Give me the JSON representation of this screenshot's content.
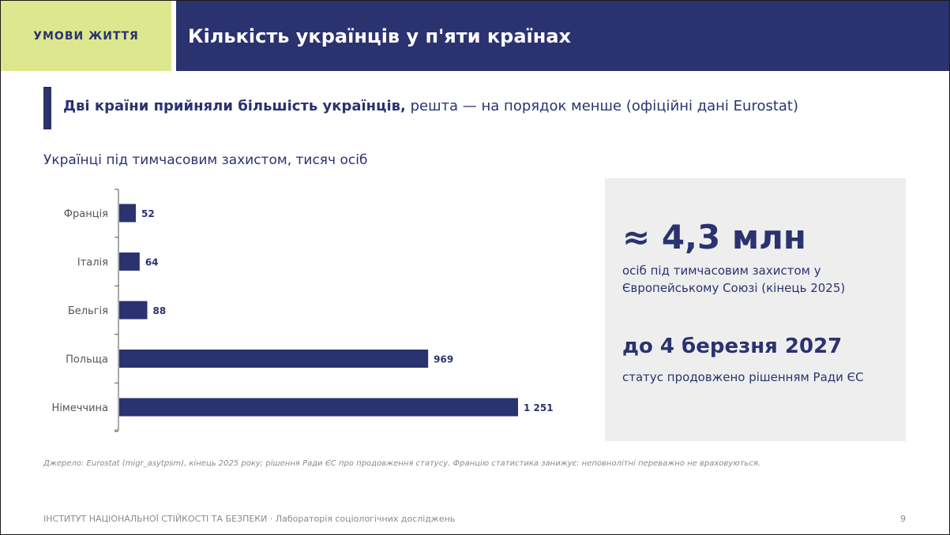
{
  "header": {
    "tag": "УМОВИ ЖИТТЯ",
    "title": "Кількість українців у п'яти країнах"
  },
  "subtitle": {
    "bold": "Дві країни прийняли більшість українців,",
    "rest": " решта — на порядок менше (офіційні дані Eurostat)"
  },
  "colors": {
    "accent": "#2b3270",
    "tag_bg": "#dde88e",
    "panel_bg": "#eeeeee"
  },
  "chart_data": {
    "type": "bar",
    "orientation": "horizontal",
    "title": "Українці під тимчасовим захистом, тисяч осіб",
    "categories": [
      "Франція",
      "Італія",
      "Бельгія",
      "Польща",
      "Німеччина"
    ],
    "values": [
      52,
      64,
      88,
      969,
      1251
    ],
    "value_labels": [
      "52",
      "64",
      "88",
      "969",
      "1 251"
    ],
    "xlim": [
      0,
      1251
    ],
    "grid": false,
    "legend": "none",
    "bar_color": "#2b3270"
  },
  "stats": {
    "big": "≈ 4,3 млн",
    "big_desc": "осіб під тимчасовим захистом у Європейському Союзі (кінець 2025)",
    "date": "до 4 березня 2027",
    "date_desc": "статус продовжено рішенням Ради ЄС"
  },
  "source": "Джерело: Eurostat (migr_asytpsm), кінець 2025 року; рішення Ради ЄС про продовження статусу. Францію статистика занижує: неповнолітні переважно не враховуються.",
  "footer": {
    "org": "ІНСТИТУТ НАЦІОНАЛЬНОЇ СТІЙКОСТІ ТА БЕЗПЕКИ · Лабораторія соціологічних досліджень",
    "page": "9"
  }
}
